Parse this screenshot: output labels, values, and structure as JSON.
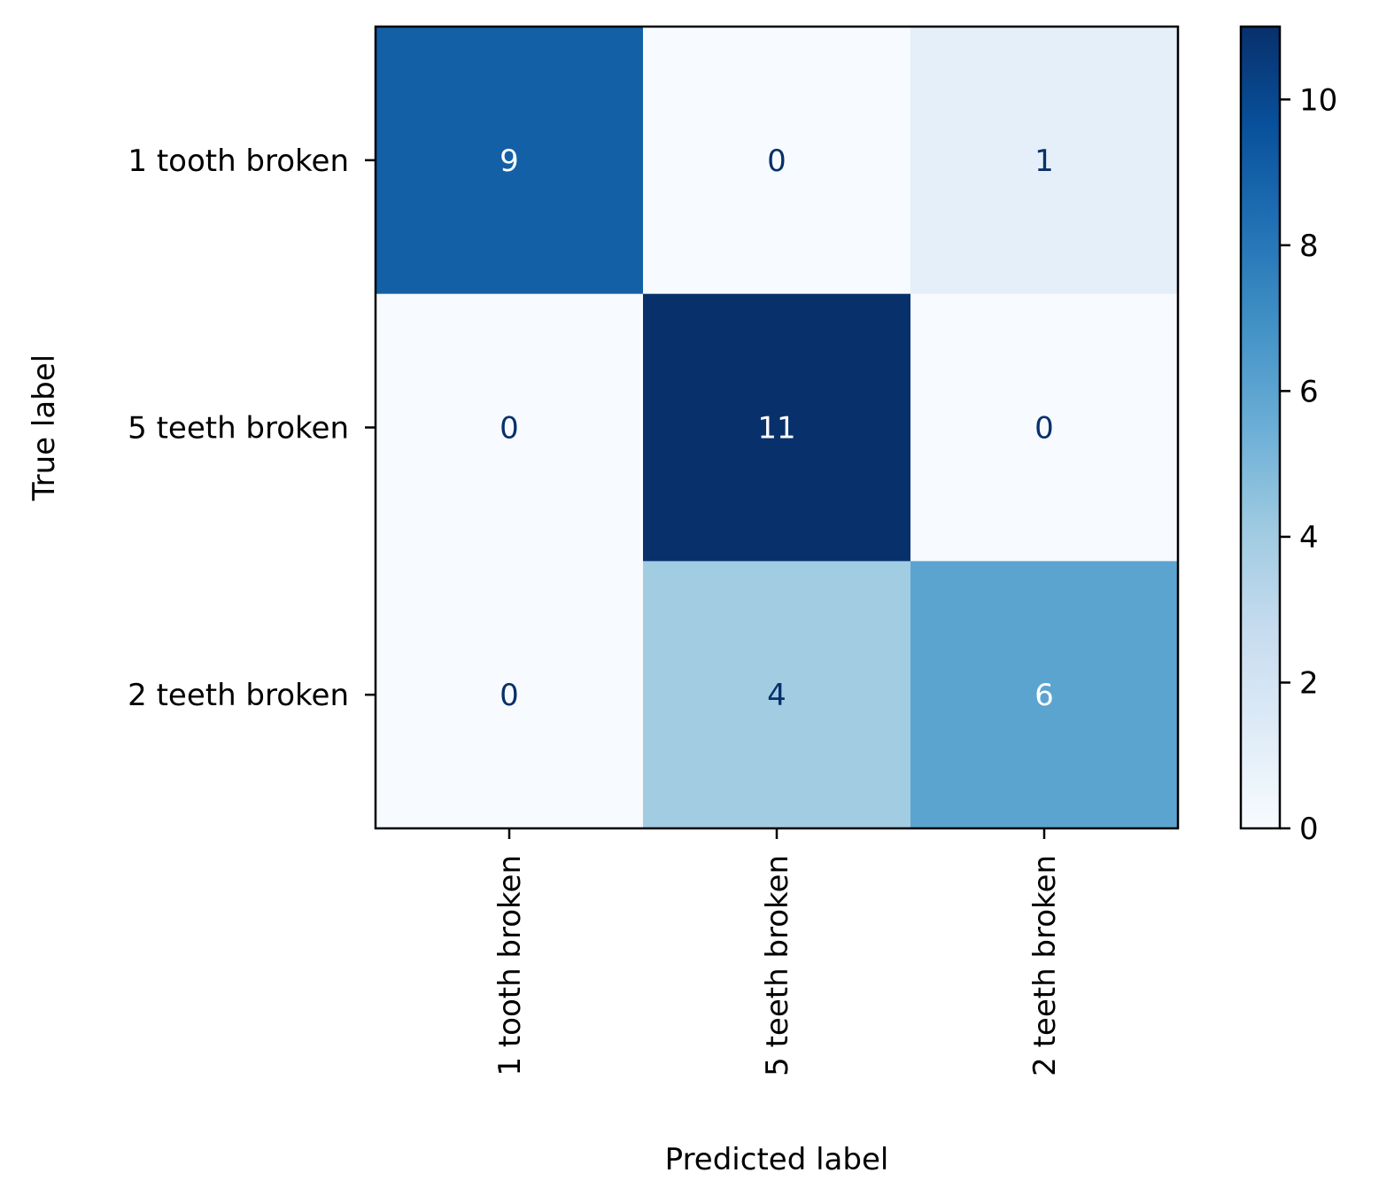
{
  "chart_data": {
    "type": "heatmap",
    "title": "",
    "xlabel": "Predicted label",
    "ylabel": "True label",
    "x_categories": [
      "1 tooth broken",
      "5 teeth broken",
      "2 teeth broken"
    ],
    "y_categories": [
      "1 tooth broken",
      "5 teeth broken",
      "2 teeth broken"
    ],
    "matrix": [
      [
        9,
        0,
        1
      ],
      [
        0,
        11,
        0
      ],
      [
        0,
        4,
        6
      ]
    ],
    "colormap": "Blues",
    "colorbar": {
      "range": [
        0,
        11
      ],
      "ticks": [
        0,
        2,
        4,
        6,
        8,
        10
      ]
    },
    "text_color_dark": "#08306b",
    "text_color_light": "#ffffff"
  }
}
